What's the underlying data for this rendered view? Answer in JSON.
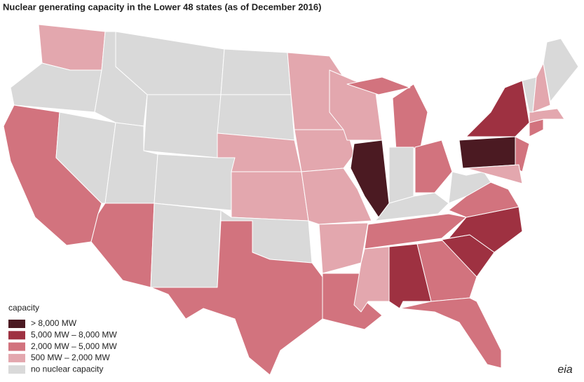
{
  "map": {
    "title": "Nuclear generating capacity in the Lower 48 states (as of December 2016)",
    "legend_title": "capacity",
    "legend": [
      {
        "label": "> 8,000 MW",
        "color": "#4b1a22"
      },
      {
        "label": "5,000 MW – 8,000 MW",
        "color": "#9e3141"
      },
      {
        "label": "2,000 MW – 5,000 MW",
        "color": "#d2737e"
      },
      {
        "label": "500 MW – 2,000 MW",
        "color": "#e3a7ae"
      },
      {
        "label": "no nuclear capacity",
        "color": "#d9d9d9"
      }
    ],
    "regions": [
      3,
      4,
      2,
      4,
      4,
      4,
      4,
      4,
      2,
      4,
      4,
      4,
      4,
      3,
      3,
      4,
      2,
      3,
      3,
      3,
      3,
      2,
      3,
      0,
      2,
      4,
      2,
      4,
      2,
      3,
      1,
      2,
      2,
      1,
      1,
      2,
      4,
      0,
      1,
      2,
      3,
      2,
      3,
      4,
      3,
      4
    ],
    "logo": "eia"
  }
}
